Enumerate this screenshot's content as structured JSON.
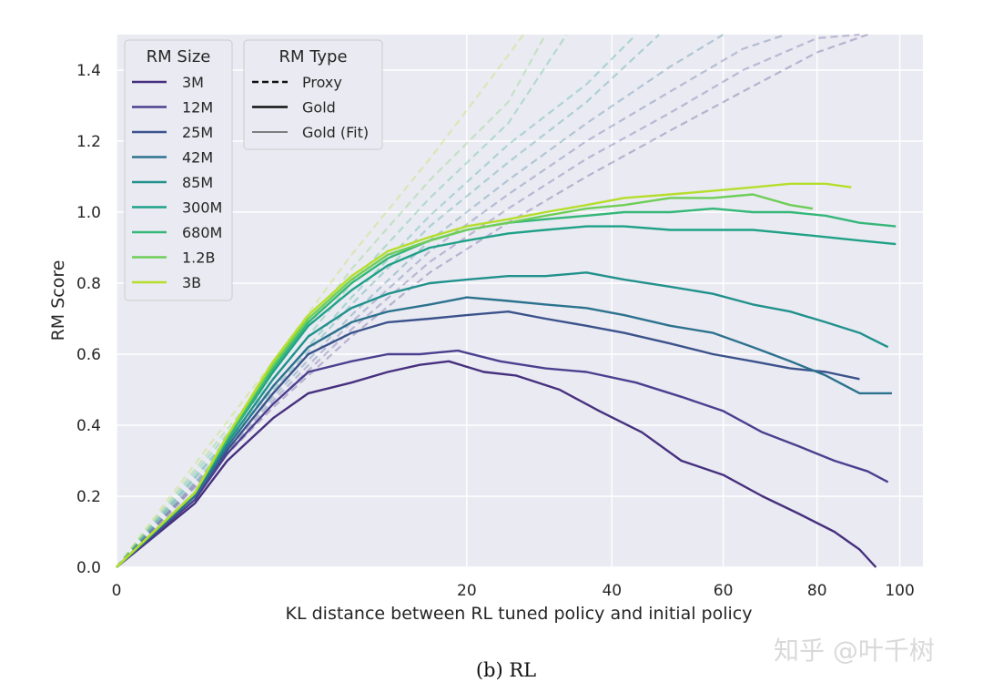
{
  "caption": "(b) RL",
  "watermark": "知乎 @叶千树",
  "colors": {
    "plot_bg": "#eaeaf2",
    "grid": "#ffffff",
    "3M": "#46307e",
    "12M": "#4b3f8f",
    "25M": "#3b528b",
    "42M": "#2c728e",
    "85M": "#21918c",
    "300M": "#1fa187",
    "680M": "#35b779",
    "1.2B": "#6ece58",
    "3B": "#b5de2b"
  },
  "chart_data": {
    "type": "line",
    "title": "",
    "xlabel": "KL distance between RL tuned policy and initial policy",
    "ylabel": "RM Score",
    "x_scale": "sqrt",
    "xlim": [
      0,
      106
    ],
    "ylim": [
      0,
      1.5
    ],
    "x_ticks": [
      0,
      20,
      40,
      60,
      80,
      100
    ],
    "y_ticks": [
      0.0,
      0.2,
      0.4,
      0.6,
      0.8,
      1.0,
      1.2,
      1.4
    ],
    "x_tick_labels": [
      "0",
      "20",
      "40",
      "60",
      "80",
      "100"
    ],
    "y_tick_labels": [
      "0.0",
      "0.2",
      "0.4",
      "0.6",
      "0.8",
      "1.0",
      "1.2",
      "1.4"
    ],
    "grid": true,
    "legends": [
      {
        "title": "RM Size",
        "placement": "upper-left",
        "entries": [
          "3M",
          "12M",
          "25M",
          "42M",
          "85M",
          "300M",
          "680M",
          "1.2B",
          "3B"
        ]
      },
      {
        "title": "RM Type",
        "placement": "upper-left",
        "entries": [
          {
            "label": "Proxy",
            "style": "dashed"
          },
          {
            "label": "Gold",
            "style": "solid"
          },
          {
            "label": "Gold (Fit)",
            "style": "thin"
          }
        ]
      }
    ],
    "gold_series": [
      {
        "name": "3M",
        "x": [
          0,
          1,
          2,
          4,
          6,
          9,
          12,
          15,
          18,
          22,
          26,
          32,
          38,
          45,
          52,
          60,
          68,
          76,
          84,
          90,
          94
        ],
        "y": [
          0,
          0.18,
          0.3,
          0.42,
          0.49,
          0.52,
          0.55,
          0.57,
          0.58,
          0.55,
          0.54,
          0.5,
          0.44,
          0.38,
          0.3,
          0.26,
          0.2,
          0.15,
          0.1,
          0.05,
          0.0
        ]
      },
      {
        "name": "12M",
        "x": [
          0,
          1,
          2,
          4,
          6,
          9,
          12,
          15,
          19,
          24,
          30,
          36,
          44,
          52,
          60,
          68,
          76,
          84,
          92,
          97
        ],
        "y": [
          0,
          0.19,
          0.32,
          0.46,
          0.55,
          0.58,
          0.6,
          0.6,
          0.61,
          0.58,
          0.56,
          0.55,
          0.52,
          0.48,
          0.44,
          0.38,
          0.34,
          0.3,
          0.27,
          0.24
        ]
      },
      {
        "name": "25M",
        "x": [
          0,
          1,
          2,
          4,
          6,
          9,
          12,
          16,
          20,
          25,
          30,
          36,
          42,
          50,
          58,
          66,
          74,
          82,
          90
        ],
        "y": [
          0,
          0.2,
          0.33,
          0.49,
          0.6,
          0.66,
          0.69,
          0.7,
          0.71,
          0.72,
          0.7,
          0.68,
          0.66,
          0.63,
          0.6,
          0.58,
          0.56,
          0.55,
          0.53
        ]
      },
      {
        "name": "42M",
        "x": [
          0,
          1,
          2,
          4,
          6,
          9,
          12,
          16,
          20,
          25,
          30,
          36,
          42,
          50,
          58,
          66,
          74,
          82,
          90,
          98
        ],
        "y": [
          0,
          0.2,
          0.34,
          0.51,
          0.62,
          0.69,
          0.72,
          0.74,
          0.76,
          0.75,
          0.74,
          0.73,
          0.71,
          0.68,
          0.66,
          0.62,
          0.58,
          0.54,
          0.49,
          0.49
        ]
      },
      {
        "name": "85M",
        "x": [
          0,
          1,
          2,
          4,
          6,
          9,
          12,
          16,
          20,
          25,
          30,
          36,
          42,
          50,
          58,
          66,
          74,
          82,
          90,
          97
        ],
        "y": [
          0,
          0.21,
          0.35,
          0.53,
          0.65,
          0.73,
          0.77,
          0.8,
          0.81,
          0.82,
          0.82,
          0.83,
          0.81,
          0.79,
          0.77,
          0.74,
          0.72,
          0.69,
          0.66,
          0.62
        ]
      },
      {
        "name": "300M",
        "x": [
          0,
          1,
          2,
          4,
          6,
          9,
          12,
          16,
          20,
          25,
          30,
          36,
          42,
          50,
          58,
          66,
          74,
          82,
          90,
          99
        ],
        "y": [
          0,
          0.21,
          0.36,
          0.55,
          0.68,
          0.78,
          0.85,
          0.9,
          0.92,
          0.94,
          0.95,
          0.96,
          0.96,
          0.95,
          0.95,
          0.95,
          0.94,
          0.93,
          0.92,
          0.91
        ]
      },
      {
        "name": "680M",
        "x": [
          0,
          1,
          2,
          4,
          6,
          9,
          12,
          16,
          20,
          25,
          30,
          36,
          42,
          50,
          58,
          66,
          74,
          82,
          90,
          99
        ],
        "y": [
          0,
          0.21,
          0.36,
          0.56,
          0.69,
          0.8,
          0.87,
          0.92,
          0.95,
          0.97,
          0.98,
          0.99,
          1.0,
          1.0,
          1.01,
          1.0,
          1.0,
          0.99,
          0.97,
          0.96
        ]
      },
      {
        "name": "1.2B",
        "x": [
          0,
          1,
          2,
          4,
          6,
          9,
          12,
          16,
          20,
          25,
          30,
          36,
          42,
          50,
          58,
          66,
          74,
          79
        ],
        "y": [
          0,
          0.21,
          0.37,
          0.57,
          0.7,
          0.81,
          0.88,
          0.92,
          0.95,
          0.97,
          0.99,
          1.01,
          1.02,
          1.04,
          1.04,
          1.05,
          1.02,
          1.01
        ]
      },
      {
        "name": "3B",
        "x": [
          0,
          1,
          2,
          4,
          6,
          9,
          12,
          16,
          20,
          25,
          30,
          36,
          42,
          50,
          58,
          66,
          74,
          82,
          88
        ],
        "y": [
          0,
          0.21,
          0.37,
          0.58,
          0.71,
          0.82,
          0.89,
          0.93,
          0.96,
          0.98,
          1.0,
          1.02,
          1.04,
          1.05,
          1.06,
          1.07,
          1.08,
          1.08,
          1.07
        ]
      }
    ],
    "proxy_series": [
      {
        "name": "3M",
        "x": [
          0,
          4,
          9,
          16,
          25,
          36,
          50,
          64,
          80,
          92
        ],
        "y": [
          0,
          0.45,
          0.65,
          0.83,
          0.97,
          1.1,
          1.23,
          1.34,
          1.45,
          1.5
        ]
      },
      {
        "name": "12M",
        "x": [
          0,
          4,
          9,
          16,
          25,
          36,
          50,
          64,
          80,
          90
        ],
        "y": [
          0,
          0.46,
          0.67,
          0.86,
          1.01,
          1.15,
          1.28,
          1.4,
          1.49,
          1.5
        ]
      },
      {
        "name": "25M",
        "x": [
          0,
          4,
          9,
          16,
          25,
          36,
          50,
          64,
          73
        ],
        "y": [
          0,
          0.47,
          0.69,
          0.89,
          1.05,
          1.2,
          1.34,
          1.46,
          1.5
        ]
      },
      {
        "name": "42M",
        "x": [
          0,
          4,
          9,
          16,
          25,
          36,
          50,
          60
        ],
        "y": [
          0,
          0.48,
          0.71,
          0.92,
          1.09,
          1.25,
          1.41,
          1.5
        ]
      },
      {
        "name": "85M",
        "x": [
          0,
          4,
          9,
          16,
          25,
          36,
          48
        ],
        "y": [
          0,
          0.5,
          0.74,
          0.96,
          1.14,
          1.31,
          1.5
        ]
      },
      {
        "name": "300M",
        "x": [
          0,
          4,
          9,
          16,
          25,
          36,
          44
        ],
        "y": [
          0,
          0.51,
          0.76,
          0.99,
          1.19,
          1.36,
          1.5
        ]
      },
      {
        "name": "680M",
        "x": [
          0,
          4,
          9,
          16,
          25,
          33
        ],
        "y": [
          0,
          0.53,
          0.8,
          1.04,
          1.25,
          1.5
        ]
      },
      {
        "name": "1.2B",
        "x": [
          0,
          4,
          9,
          16,
          25,
          30
        ],
        "y": [
          0,
          0.55,
          0.84,
          1.09,
          1.31,
          1.5
        ]
      },
      {
        "name": "3B",
        "x": [
          0,
          4,
          9,
          16,
          22,
          27
        ],
        "y": [
          0,
          0.58,
          0.88,
          1.15,
          1.35,
          1.5
        ]
      }
    ]
  }
}
